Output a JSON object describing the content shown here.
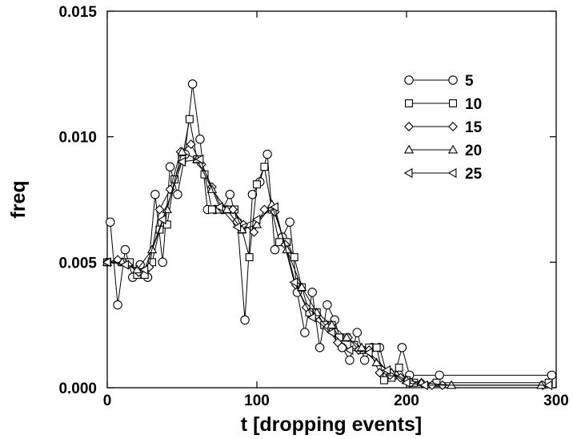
{
  "chart_data": {
    "type": "line",
    "title": "",
    "xlabel": "t [dropping events]",
    "ylabel": "freq",
    "xlim": [
      0,
      300
    ],
    "ylim": [
      0,
      0.015
    ],
    "xticks": [
      0,
      100,
      200,
      300
    ],
    "xtick_labels": [
      "0",
      "100",
      "200",
      "300"
    ],
    "yticks": [
      0,
      0.005,
      0.01,
      0.015
    ],
    "ytick_labels": [
      "0.000",
      "0.005",
      "0.010",
      "0.015"
    ],
    "grid": false,
    "legend_position": "top-right",
    "series": [
      {
        "name": "5",
        "marker": "circle",
        "x": [
          2,
          7,
          12,
          17,
          22,
          27,
          32,
          37,
          42,
          47,
          52,
          57,
          62,
          67,
          72,
          77,
          82,
          87,
          92,
          97,
          102,
          107,
          112,
          117,
          122,
          127,
          132,
          137,
          142,
          147,
          152,
          157,
          162,
          167,
          172,
          177,
          182,
          187,
          192,
          197,
          202,
          222,
          297
        ],
        "y": [
          0.0066,
          0.0033,
          0.0055,
          0.0044,
          0.0049,
          0.0044,
          0.0077,
          0.005,
          0.0088,
          0.0077,
          0.0093,
          0.0121,
          0.0099,
          0.0071,
          0.0071,
          0.0071,
          0.0077,
          0.0066,
          0.0027,
          0.0077,
          0.0082,
          0.0093,
          0.0055,
          0.006,
          0.0066,
          0.0038,
          0.0022,
          0.0038,
          0.0016,
          0.0033,
          0.0027,
          0.0016,
          0.0011,
          0.0022,
          0.0011,
          0.0016,
          0.0016,
          0.0005,
          0.0005,
          0.0016,
          0.0005,
          0.0005,
          0.0005
        ]
      },
      {
        "name": "10",
        "marker": "square",
        "x": [
          0,
          10,
          15,
          20,
          25,
          30,
          35,
          40,
          45,
          50,
          55,
          60,
          65,
          70,
          75,
          80,
          85,
          90,
          95,
          100,
          105,
          110,
          115,
          120,
          125,
          130,
          135,
          140,
          145,
          150,
          155,
          160,
          165,
          170,
          175,
          180,
          185,
          190,
          195,
          200,
          205,
          220,
          295
        ],
        "y": [
          0.005,
          0.005,
          0.005,
          0.0045,
          0.0045,
          0.005,
          0.0063,
          0.0065,
          0.0083,
          0.0091,
          0.0107,
          0.0091,
          0.0085,
          0.0071,
          0.0071,
          0.0071,
          0.0071,
          0.0063,
          0.0052,
          0.0081,
          0.0088,
          0.0071,
          0.0058,
          0.0058,
          0.0052,
          0.004,
          0.003,
          0.003,
          0.0025,
          0.0025,
          0.002,
          0.002,
          0.0017,
          0.0015,
          0.0016,
          0.0016,
          0.0003,
          0.0004,
          0.0008,
          0.0003,
          0.0002,
          0.0002,
          0.0002
        ]
      },
      {
        "name": "15",
        "marker": "diamond",
        "x": [
          0,
          7,
          14,
          21,
          28,
          35,
          42,
          49,
          56,
          63,
          70,
          77,
          84,
          91,
          98,
          105,
          112,
          119,
          126,
          133,
          140,
          147,
          154,
          161,
          168,
          175,
          182,
          189,
          196,
          203,
          210,
          217,
          224,
          291
        ],
        "y": [
          0.005,
          0.0051,
          0.0049,
          0.0046,
          0.0048,
          0.0071,
          0.0079,
          0.0094,
          0.0097,
          0.0089,
          0.008,
          0.0071,
          0.0071,
          0.0065,
          0.0062,
          0.0071,
          0.007,
          0.0057,
          0.0041,
          0.0032,
          0.0029,
          0.0024,
          0.0018,
          0.002,
          0.0015,
          0.0015,
          0.0006,
          0.0005,
          0.0004,
          0.0002,
          0.0002,
          0.0001,
          0.0001,
          0.0001
        ]
      },
      {
        "name": "20",
        "marker": "triangle-up",
        "x": [
          0,
          10,
          20,
          30,
          40,
          50,
          60,
          70,
          80,
          90,
          100,
          110,
          120,
          130,
          140,
          150,
          160,
          170,
          180,
          190,
          200,
          210,
          230,
          290
        ],
        "y": [
          0.005,
          0.005,
          0.0047,
          0.0055,
          0.0071,
          0.0094,
          0.0091,
          0.0079,
          0.0071,
          0.0063,
          0.0065,
          0.0073,
          0.0055,
          0.004,
          0.003,
          0.0025,
          0.002,
          0.0016,
          0.001,
          0.0006,
          0.0003,
          0.0002,
          0.0001,
          0.0001
        ]
      },
      {
        "name": "25",
        "marker": "triangle-left",
        "x": [
          0,
          12,
          25,
          37,
          50,
          62,
          75,
          87,
          100,
          112,
          125,
          137,
          150,
          162,
          175,
          187,
          200,
          212,
          295
        ],
        "y": [
          0.005,
          0.0049,
          0.0047,
          0.0067,
          0.009,
          0.0091,
          0.0072,
          0.0064,
          0.0067,
          0.0072,
          0.0042,
          0.0028,
          0.0022,
          0.0015,
          0.0014,
          0.0007,
          0.0002,
          0.0001,
          0.0001
        ]
      }
    ]
  }
}
